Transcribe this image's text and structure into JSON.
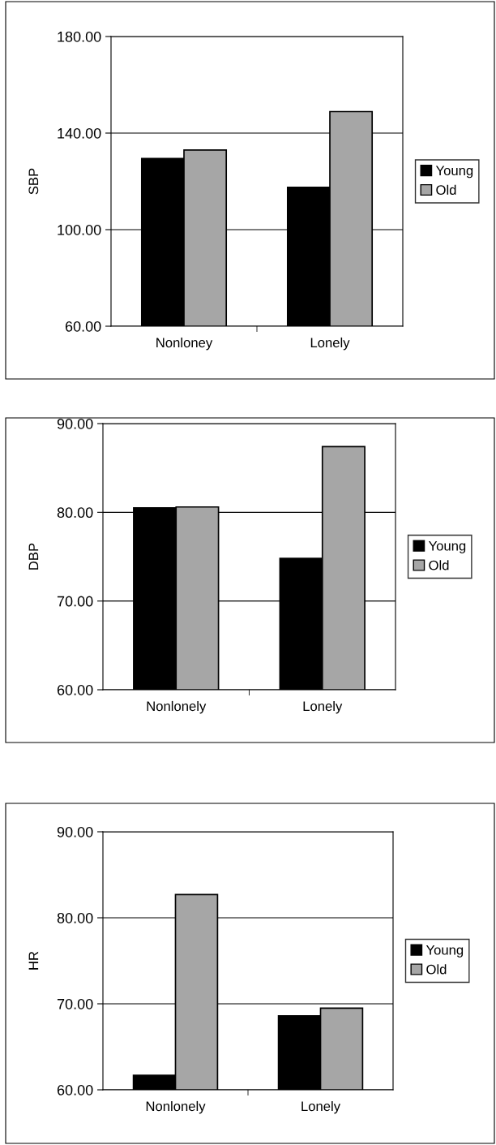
{
  "chart_data": [
    {
      "type": "bar",
      "ylabel": "SBP",
      "categories": [
        "Nonloney",
        "Lonely"
      ],
      "series": [
        {
          "name": "Young",
          "color": "#000000",
          "values": [
            129.5,
            117.5
          ]
        },
        {
          "name": "Old",
          "color": "#a6a6a6",
          "values": [
            133.0,
            148.9
          ]
        }
      ],
      "ylim": [
        60,
        180
      ],
      "yticks": [
        {
          "value": 60,
          "label": "60.00"
        },
        {
          "value": 100,
          "label": "100.00"
        },
        {
          "value": 140,
          "label": "140.00"
        },
        {
          "value": 180,
          "label": "180.00"
        }
      ],
      "grid": "y",
      "legend": "right"
    },
    {
      "type": "bar",
      "ylabel": "DBP",
      "categories": [
        "Nonlonely",
        "Lonely"
      ],
      "series": [
        {
          "name": "Young",
          "color": "#000000",
          "values": [
            80.5,
            74.8
          ]
        },
        {
          "name": "Old",
          "color": "#a6a6a6",
          "values": [
            80.6,
            87.4
          ]
        }
      ],
      "ylim": [
        60,
        90
      ],
      "yticks": [
        {
          "value": 60,
          "label": "60.00"
        },
        {
          "value": 70,
          "label": "70.00"
        },
        {
          "value": 80,
          "label": "80.00"
        },
        {
          "value": 90,
          "label": "90.00"
        }
      ],
      "grid": "y",
      "legend": "right"
    },
    {
      "type": "bar",
      "ylabel": "HR",
      "categories": [
        "Nonlonely",
        "Lonely"
      ],
      "series": [
        {
          "name": "Young",
          "color": "#000000",
          "values": [
            61.7,
            68.6
          ]
        },
        {
          "name": "Old",
          "color": "#a6a6a6",
          "values": [
            82.7,
            69.5
          ]
        }
      ],
      "ylim": [
        60,
        90
      ],
      "yticks": [
        {
          "value": 60,
          "label": "60.00"
        },
        {
          "value": 70,
          "label": "70.00"
        },
        {
          "value": 80,
          "label": "80.00"
        },
        {
          "value": 90,
          "label": "90.00"
        }
      ],
      "grid": "y",
      "legend": "right"
    }
  ]
}
